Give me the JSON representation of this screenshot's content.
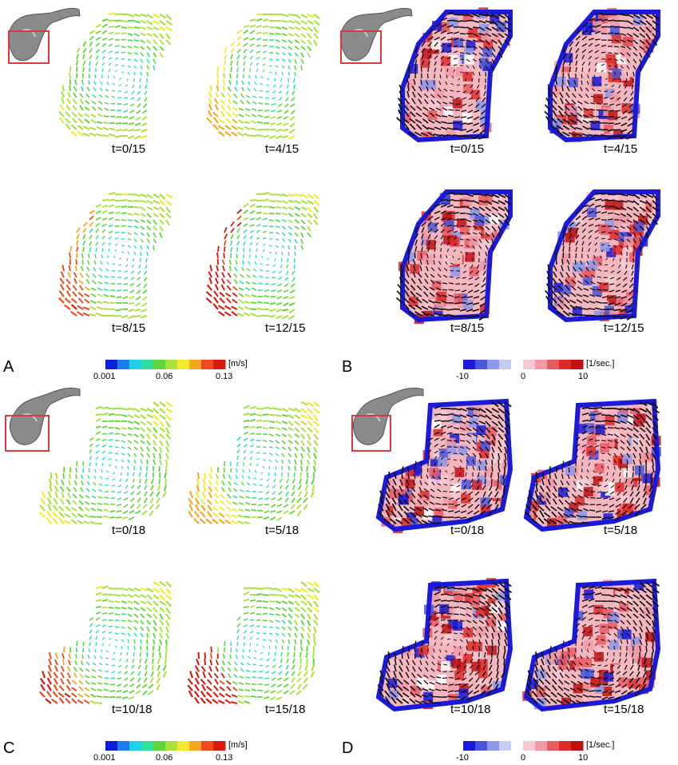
{
  "figure": {
    "panels": [
      {
        "letter": "A",
        "kind": "velocity",
        "frames": [
          "t=0/15",
          "t=4/15",
          "t=8/15",
          "t=12/15"
        ],
        "colorbar": {
          "ticks": [
            "0.001",
            "0.06",
            "0.13"
          ],
          "unit": "[m/s]"
        }
      },
      {
        "letter": "B",
        "kind": "vorticity",
        "frames": [
          "t=0/15",
          "t=4/15",
          "t=8/15",
          "t=12/15"
        ],
        "colorbar": {
          "ticks": [
            "-10",
            "0",
            "10"
          ],
          "unit": "[1/sec.]"
        }
      },
      {
        "letter": "C",
        "kind": "velocity",
        "frames": [
          "t=0/18",
          "t=5/18",
          "t=10/18",
          "t=15/18"
        ],
        "colorbar": {
          "ticks": [
            "0.001",
            "0.06",
            "0.13"
          ],
          "unit": "[m/s]"
        }
      },
      {
        "letter": "D",
        "kind": "vorticity",
        "frames": [
          "t=0/18",
          "t=5/18",
          "t=10/18",
          "t=15/18"
        ],
        "colorbar": {
          "ticks": [
            "-10",
            "0",
            "10"
          ],
          "unit": "[1/sec.]"
        }
      }
    ],
    "colors": {
      "velocity_scale": [
        "#0a1fd6",
        "#1b7df0",
        "#1ed1e8",
        "#2ee0a0",
        "#5ed63a",
        "#a8e23a",
        "#f1ea2f",
        "#f5a623",
        "#ef4a1e",
        "#d7190f"
      ],
      "vorticity_scale": [
        "#1a1ad8",
        "#4b56e0",
        "#8e96ea",
        "#c7ccf2",
        "#ffffff",
        "#f7c9d0",
        "#f19aa6",
        "#ea5a63",
        "#de2a2a",
        "#c01010"
      ],
      "vector_dark": "#111111",
      "highlight_box": "#d93a3a",
      "anatomy_gray": "#7a7a7a"
    },
    "icons": [
      "anatomy-thumbnail-icon"
    ]
  }
}
